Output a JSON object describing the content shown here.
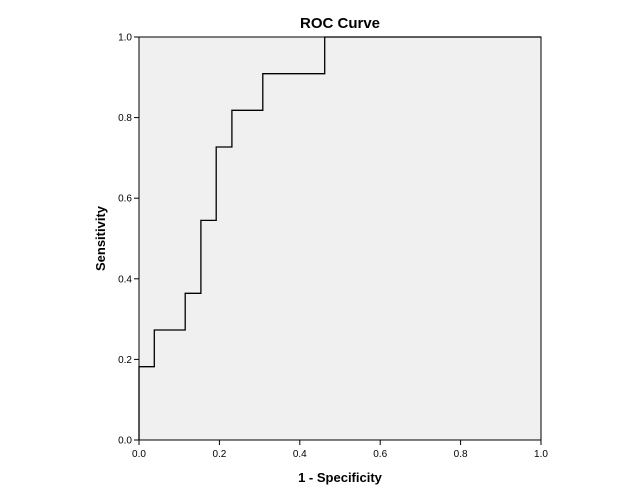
{
  "chart_data": {
    "type": "line",
    "title": "ROC Curve",
    "xlabel": "1 - Specificity",
    "ylabel": "Sensitivity",
    "xlim": [
      0,
      1
    ],
    "ylim": [
      0,
      1
    ],
    "xticks": [
      "0.0",
      "0.2",
      "0.4",
      "0.6",
      "0.8",
      "1.0"
    ],
    "yticks": [
      "0.0",
      "0.2",
      "0.4",
      "0.6",
      "0.8",
      "1.0"
    ],
    "grid": false,
    "legend": "none",
    "step": true,
    "series": [
      {
        "x": [
          0.0,
          0.0,
          0.038,
          0.038,
          0.115,
          0.115,
          0.154,
          0.154,
          0.192,
          0.192,
          0.231,
          0.231,
          0.308,
          0.308,
          0.462,
          0.462,
          1.0
        ],
        "y": [
          0.0,
          0.182,
          0.182,
          0.273,
          0.273,
          0.364,
          0.364,
          0.545,
          0.545,
          0.727,
          0.727,
          0.818,
          0.818,
          0.909,
          0.909,
          1.0,
          1.0
        ]
      }
    ],
    "colors": {
      "plot_background": "#f0f0f0",
      "line": "#000000",
      "frame": "#000000"
    }
  }
}
